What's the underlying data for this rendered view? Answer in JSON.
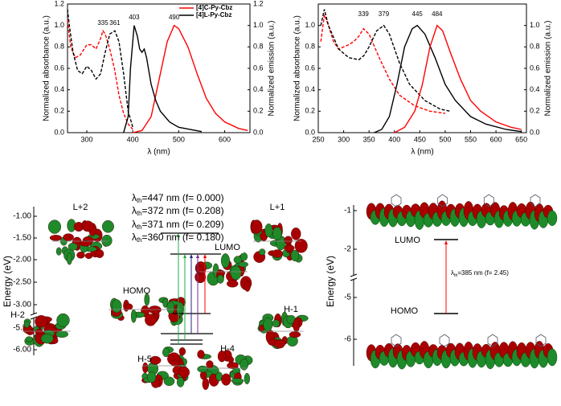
{
  "chart_data": [
    {
      "type": "line",
      "xlabel": "λ (nm)",
      "ylabel": "Normalized absorbance (a.u.)",
      "y2label": "Normalized emission (a.u.)",
      "xlim": [
        258,
        655
      ],
      "xticks": [
        300,
        400,
        500,
        600
      ],
      "ylim": [
        0,
        1.2
      ],
      "yticks": [
        {
          "value": 0,
          "label": "0.0"
        },
        {
          "value": 0.2,
          "label": "0.2"
        },
        {
          "value": 0.4,
          "label": "0.4"
        },
        {
          "value": 0.6,
          "label": "0.6"
        },
        {
          "value": 0.8,
          "label": "0.8"
        },
        {
          "value": 1.0,
          "label": "1.0"
        },
        {
          "value": 1.2,
          "label": "1.2"
        }
      ],
      "y2lim": [
        0,
        1.2
      ],
      "y2ticks": [
        {
          "value": 0,
          "label": "0.0"
        },
        {
          "value": 0.2,
          "label": "0.2"
        },
        {
          "value": 0.4,
          "label": "0.4"
        },
        {
          "value": 0.6,
          "label": "0.6"
        },
        {
          "value": 0.8,
          "label": "0.8"
        },
        {
          "value": 1.0,
          "label": "1.0"
        },
        {
          "value": 1.2,
          "label": "1.2"
        }
      ],
      "legend": "top-right",
      "series": [
        {
          "color": "#ff0000",
          "dash": true,
          "x": [
            258,
            265,
            275,
            285,
            300,
            310,
            320,
            330,
            335,
            340,
            350,
            360,
            370,
            380,
            390,
            400
          ],
          "values": [
            1.05,
            0.8,
            0.7,
            0.72,
            0.82,
            0.82,
            0.78,
            0.88,
            0.95,
            0.92,
            0.78,
            0.6,
            0.35,
            0.18,
            0.08,
            0.03
          ]
        },
        {
          "color": "#000000",
          "dash": true,
          "x": [
            258,
            262,
            270,
            280,
            290,
            300,
            310,
            320,
            330,
            340,
            350,
            361,
            370,
            380,
            390,
            400
          ],
          "values": [
            1.15,
            1.0,
            0.75,
            0.58,
            0.55,
            0.62,
            0.58,
            0.5,
            0.55,
            0.75,
            0.92,
            0.95,
            0.85,
            0.55,
            0.2,
            0.05
          ]
        },
        {
          "name": "[4]C-Py-Cbz",
          "color": "#ff0000",
          "x": [
            400,
            420,
            440,
            460,
            475,
            490,
            500,
            520,
            540,
            560,
            580,
            600,
            630,
            650
          ],
          "values": [
            0,
            0.02,
            0.15,
            0.55,
            0.85,
            1.0,
            0.97,
            0.8,
            0.55,
            0.32,
            0.18,
            0.1,
            0.04,
            0.02
          ]
        },
        {
          "name": "[4]L-Py-Cbz",
          "color": "#000000",
          "x": [
            380,
            390,
            395,
            403,
            410,
            415,
            420,
            425,
            430,
            440,
            450,
            460,
            480,
            500,
            550
          ],
          "values": [
            0,
            0.15,
            0.6,
            1.0,
            0.9,
            0.78,
            0.75,
            0.78,
            0.7,
            0.45,
            0.3,
            0.2,
            0.1,
            0.05,
            0.01
          ]
        }
      ],
      "annotations": [
        {
          "x": 335,
          "y": 0.97,
          "color": "#ff0000"
        },
        {
          "x": 361,
          "y": 0.97,
          "color": "#000000"
        },
        {
          "x": 403,
          "y": 1.02,
          "color": "#000000"
        },
        {
          "x": 490,
          "y": 1.02,
          "color": "#ff0000"
        }
      ]
    },
    {
      "type": "line",
      "xlabel": "λ (nm)",
      "ylabel": "Normalized absorbance (a.u.)",
      "y2label": "Normalized emission (a.u.)",
      "xlim": [
        250,
        660
      ],
      "xticks": [
        250,
        300,
        350,
        400,
        450,
        500,
        550,
        600,
        650
      ],
      "ylim": [
        0,
        1.2
      ],
      "yticks": [
        {
          "value": 0,
          "label": "0.0"
        },
        {
          "value": 0.2,
          "label": "0.2"
        },
        {
          "value": 0.4,
          "label": "0.4"
        },
        {
          "value": 0.6,
          "label": "0.6"
        },
        {
          "value": 0.8,
          "label": "0.8"
        },
        {
          "value": 1.0,
          "label": "1.0"
        }
      ],
      "y2lim": [
        0,
        1.2
      ],
      "y2ticks": [
        {
          "value": 0,
          "label": "0.0"
        },
        {
          "value": 0.2,
          "label": "0.2"
        },
        {
          "value": 0.4,
          "label": "0.4"
        },
        {
          "value": 0.6,
          "label": "0.6"
        },
        {
          "value": 0.8,
          "label": "0.8"
        },
        {
          "value": 1.0,
          "label": "1.0"
        }
      ],
      "series": [
        {
          "color": "#ff0000",
          "dash": true,
          "x": [
            255,
            262,
            270,
            280,
            290,
            300,
            310,
            320,
            330,
            339,
            350,
            370,
            390,
            410,
            440,
            470,
            500
          ],
          "values": [
            0.85,
            1.1,
            1.0,
            0.85,
            0.78,
            0.8,
            0.82,
            0.85,
            0.9,
            0.97,
            0.92,
            0.7,
            0.5,
            0.35,
            0.25,
            0.2,
            0.18
          ]
        },
        {
          "color": "#000000",
          "dash": true,
          "x": [
            255,
            262,
            270,
            290,
            310,
            330,
            340,
            350,
            365,
            379,
            390,
            410,
            430,
            460,
            490,
            510
          ],
          "values": [
            1.0,
            1.15,
            1.0,
            0.78,
            0.7,
            0.68,
            0.72,
            0.8,
            0.95,
            1.0,
            0.92,
            0.65,
            0.45,
            0.3,
            0.22,
            0.2
          ]
        },
        {
          "color": "#000000",
          "x": [
            360,
            375,
            390,
            405,
            420,
            435,
            445,
            460,
            480,
            500,
            520,
            550,
            580,
            620,
            650
          ],
          "values": [
            0,
            0.03,
            0.15,
            0.45,
            0.8,
            0.97,
            1.0,
            0.92,
            0.7,
            0.45,
            0.3,
            0.15,
            0.08,
            0.03,
            0.01
          ]
        },
        {
          "color": "#ff0000",
          "x": [
            400,
            420,
            440,
            455,
            470,
            484,
            495,
            510,
            530,
            550,
            570,
            600,
            630,
            650
          ],
          "values": [
            0,
            0.05,
            0.2,
            0.45,
            0.8,
            1.0,
            0.95,
            0.75,
            0.5,
            0.3,
            0.2,
            0.1,
            0.05,
            0.03
          ]
        }
      ],
      "annotations": [
        {
          "x": 339,
          "y": 1.05,
          "color": "#ff0000"
        },
        {
          "x": 379,
          "y": 1.05,
          "color": "#000000"
        },
        {
          "x": 445,
          "y": 1.05,
          "color": "#000000"
        },
        {
          "x": 484,
          "y": 1.05,
          "color": "#ff0000"
        }
      ]
    }
  ],
  "energy_diagrams": [
    {
      "y_axis_label": "Energy (eV)",
      "yticks": [
        "-1.00",
        "-1.50",
        "-2.00",
        "-2.50",
        "-3.00",
        "-5.50",
        "-6.00"
      ],
      "orbitals": [
        "L+2",
        "L+1",
        "LUMO",
        "HOMO",
        "H-1",
        "H-2",
        "H-4",
        "H-5"
      ],
      "transitions": [
        {
          "symbol": "λ",
          "sub": "th",
          "text": "=447 nm (f= 0.000)",
          "color": "#ff0000"
        },
        {
          "symbol": "λ",
          "sub": "th",
          "text": "=372 nm (f= 0.208)",
          "color": "#22a84a"
        },
        {
          "symbol": "λ",
          "sub": "th",
          "text": "=371 nm (f= 0.209)",
          "color": "#22a84a"
        },
        {
          "symbol": "λ",
          "sub": "th",
          "text": "=360 nm (f= 0.180)",
          "color": "#23238f"
        }
      ]
    },
    {
      "y_axis_label": "Energy (eV)",
      "yticks": [
        "-1",
        "-2",
        "-5",
        "-6"
      ],
      "orbitals": [
        "LUMO",
        "HOMO"
      ],
      "transitions": [
        {
          "symbol": "λ",
          "sub": "th",
          "text": "=385 nm (f= 2.45)",
          "color": "#ff0000"
        }
      ]
    }
  ]
}
